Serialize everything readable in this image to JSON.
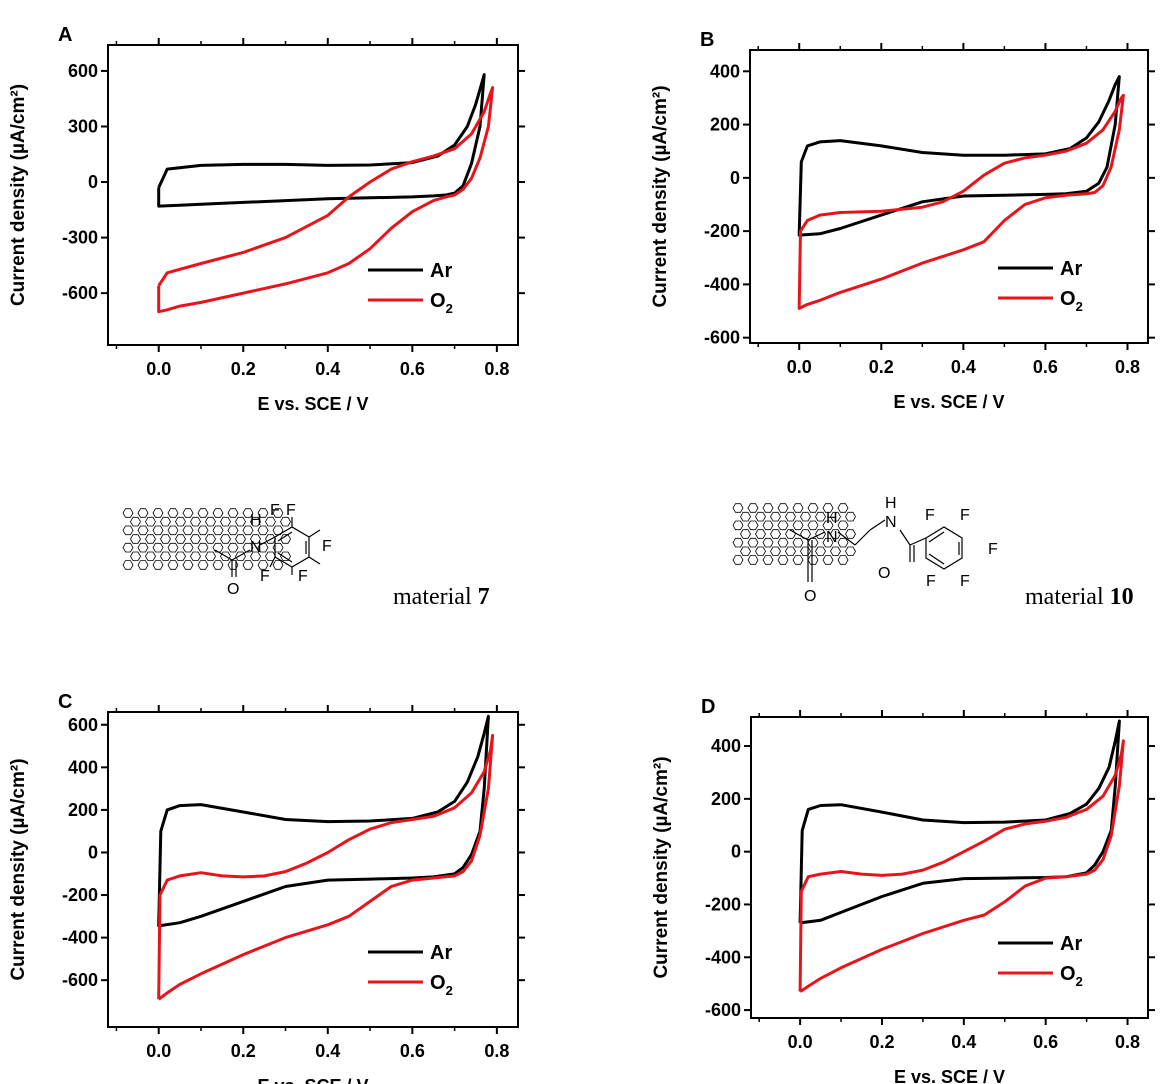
{
  "chart_data": [
    {
      "type": "line",
      "panel_label": "A",
      "xlabel": "E vs. SCE / V",
      "ylabel": "Current density (µA/cm²)",
      "xlim": [
        -0.12,
        0.85
      ],
      "ylim": [
        -880,
        740
      ],
      "xticks": [
        "0.0",
        "0.2",
        "0.4",
        "0.6",
        "0.8"
      ],
      "yticks": [
        "-600",
        "-300",
        "0",
        "300",
        "600"
      ],
      "legend_position": "bottom-right",
      "series": [
        {
          "name": "Ar",
          "color": "#000000",
          "x": [
            0.0,
            0.02,
            0.1,
            0.2,
            0.3,
            0.4,
            0.5,
            0.6,
            0.66,
            0.7,
            0.73,
            0.75,
            0.765,
            0.77,
            0.76,
            0.74,
            0.72,
            0.7,
            0.68,
            0.65,
            0.6,
            0.5,
            0.4,
            0.3,
            0.2,
            0.1,
            0.05,
            0.0,
            0.0,
            0.0
          ],
          "y": [
            -30,
            70,
            90,
            95,
            95,
            90,
            92,
            105,
            140,
            200,
            300,
            420,
            540,
            580,
            300,
            100,
            -20,
            -60,
            -70,
            -75,
            -80,
            -85,
            -90,
            -100,
            -110,
            -120,
            -125,
            -130,
            -100,
            -30
          ]
        },
        {
          "name": "O₂",
          "color": "#e8141c",
          "x": [
            0.0,
            0.02,
            0.1,
            0.2,
            0.3,
            0.4,
            0.45,
            0.5,
            0.55,
            0.6,
            0.65,
            0.7,
            0.74,
            0.77,
            0.785,
            0.79,
            0.78,
            0.76,
            0.74,
            0.72,
            0.7,
            0.68,
            0.65,
            0.6,
            0.55,
            0.5,
            0.45,
            0.4,
            0.3,
            0.2,
            0.1,
            0.05,
            0.02,
            0.0,
            0.0,
            0.0
          ],
          "y": [
            -560,
            -490,
            -440,
            -380,
            -300,
            -180,
            -80,
            0,
            70,
            110,
            140,
            180,
            260,
            380,
            480,
            510,
            300,
            130,
            20,
            -40,
            -70,
            -80,
            -100,
            -160,
            -250,
            -360,
            -440,
            -490,
            -550,
            -600,
            -650,
            -670,
            -690,
            -700,
            -600,
            -560
          ]
        }
      ],
      "legend": [
        {
          "label": "Ar"
        },
        {
          "label": "O",
          "sub": "2"
        }
      ]
    },
    {
      "type": "line",
      "panel_label": "B",
      "xlabel": "E vs. SCE / V",
      "ylabel": "Current density (µA/cm²)",
      "xlim": [
        -0.12,
        0.85
      ],
      "ylim": [
        -620,
        480
      ],
      "xticks": [
        "0.0",
        "0.2",
        "0.4",
        "0.6",
        "0.8"
      ],
      "yticks": [
        "-600",
        "-400",
        "-200",
        "0",
        "200",
        "400"
      ],
      "legend_position": "bottom-right",
      "series": [
        {
          "name": "Ar",
          "color": "#000000",
          "x": [
            0.0,
            0.005,
            0.02,
            0.05,
            0.1,
            0.2,
            0.3,
            0.4,
            0.5,
            0.6,
            0.66,
            0.7,
            0.73,
            0.755,
            0.77,
            0.78,
            0.77,
            0.75,
            0.73,
            0.7,
            0.65,
            0.6,
            0.5,
            0.4,
            0.3,
            0.2,
            0.1,
            0.05,
            0.0,
            0.0
          ],
          "y": [
            -210,
            60,
            120,
            135,
            140,
            120,
            95,
            85,
            85,
            90,
            110,
            150,
            210,
            290,
            350,
            380,
            200,
            40,
            -20,
            -50,
            -60,
            -62,
            -65,
            -68,
            -90,
            -140,
            -190,
            -210,
            -215,
            -210
          ]
        },
        {
          "name": "O₂",
          "color": "#e8141c",
          "x": [
            0.0,
            0.003,
            0.02,
            0.05,
            0.1,
            0.2,
            0.3,
            0.35,
            0.4,
            0.45,
            0.5,
            0.55,
            0.6,
            0.65,
            0.7,
            0.74,
            0.77,
            0.785,
            0.79,
            0.78,
            0.76,
            0.74,
            0.72,
            0.7,
            0.65,
            0.6,
            0.55,
            0.5,
            0.45,
            0.4,
            0.3,
            0.2,
            0.1,
            0.05,
            0.02,
            0.0,
            0.0
          ],
          "y": [
            -480,
            -200,
            -160,
            -140,
            -130,
            -125,
            -110,
            -90,
            -50,
            10,
            55,
            75,
            85,
            100,
            130,
            180,
            250,
            300,
            310,
            180,
            40,
            -30,
            -55,
            -60,
            -65,
            -75,
            -100,
            -160,
            -240,
            -270,
            -320,
            -380,
            -430,
            -460,
            -475,
            -490,
            -480
          ]
        }
      ],
      "legend": [
        {
          "label": "Ar"
        },
        {
          "label": "O",
          "sub": "2"
        }
      ]
    },
    {
      "type": "line",
      "panel_label": "C",
      "xlabel": "E vs. SCE / V",
      "ylabel": "Current density (µA/cm²)",
      "xlim": [
        -0.12,
        0.85
      ],
      "ylim": [
        -820,
        660
      ],
      "xticks": [
        "0.0",
        "0.2",
        "0.4",
        "0.6",
        "0.8"
      ],
      "yticks": [
        "-600",
        "-400",
        "-200",
        "0",
        "200",
        "400",
        "600"
      ],
      "legend_position": "bottom-right",
      "series": [
        {
          "name": "Ar",
          "color": "#000000",
          "x": [
            0.0,
            0.005,
            0.02,
            0.05,
            0.1,
            0.2,
            0.3,
            0.4,
            0.5,
            0.6,
            0.66,
            0.7,
            0.73,
            0.755,
            0.77,
            0.78,
            0.77,
            0.76,
            0.74,
            0.72,
            0.7,
            0.65,
            0.6,
            0.5,
            0.4,
            0.3,
            0.2,
            0.1,
            0.05,
            0.0,
            0.0
          ],
          "y": [
            -340,
            100,
            200,
            220,
            225,
            190,
            155,
            145,
            148,
            160,
            190,
            240,
            330,
            450,
            560,
            640,
            300,
            100,
            -10,
            -70,
            -100,
            -115,
            -120,
            -125,
            -130,
            -160,
            -230,
            -300,
            -330,
            -345,
            -340
          ]
        },
        {
          "name": "O₂",
          "color": "#e8141c",
          "x": [
            0.0,
            0.003,
            0.02,
            0.05,
            0.1,
            0.15,
            0.2,
            0.25,
            0.3,
            0.35,
            0.4,
            0.45,
            0.5,
            0.55,
            0.6,
            0.65,
            0.7,
            0.74,
            0.77,
            0.785,
            0.79,
            0.78,
            0.76,
            0.74,
            0.72,
            0.7,
            0.65,
            0.6,
            0.55,
            0.5,
            0.45,
            0.4,
            0.3,
            0.2,
            0.1,
            0.05,
            0.02,
            0.0,
            0.0
          ],
          "y": [
            -690,
            -200,
            -130,
            -110,
            -95,
            -110,
            -115,
            -110,
            -90,
            -50,
            0,
            60,
            110,
            140,
            155,
            170,
            210,
            280,
            380,
            480,
            550,
            300,
            80,
            -40,
            -90,
            -110,
            -120,
            -130,
            -160,
            -230,
            -300,
            -340,
            -400,
            -480,
            -570,
            -620,
            -660,
            -690,
            -690
          ]
        }
      ],
      "legend": [
        {
          "label": "Ar"
        },
        {
          "label": "O",
          "sub": "2"
        }
      ]
    },
    {
      "type": "line",
      "panel_label": "D",
      "xlabel": "E vs. SCE / V",
      "ylabel": "Current density (µA/cm²)",
      "xlim": [
        -0.12,
        0.85
      ],
      "ylim": [
        -630,
        510
      ],
      "xticks": [
        "0.0",
        "0.2",
        "0.4",
        "0.6",
        "0.8"
      ],
      "yticks": [
        "-600",
        "-400",
        "-200",
        "0",
        "200",
        "400"
      ],
      "legend_position": "bottom-right",
      "series": [
        {
          "name": "Ar",
          "color": "#000000",
          "x": [
            0.0,
            0.005,
            0.02,
            0.05,
            0.1,
            0.2,
            0.3,
            0.4,
            0.5,
            0.6,
            0.66,
            0.7,
            0.73,
            0.755,
            0.77,
            0.78,
            0.77,
            0.76,
            0.74,
            0.72,
            0.7,
            0.65,
            0.6,
            0.5,
            0.4,
            0.3,
            0.2,
            0.1,
            0.05,
            0.0,
            0.0
          ],
          "y": [
            -270,
            80,
            160,
            175,
            178,
            150,
            120,
            110,
            112,
            120,
            145,
            180,
            240,
            320,
            420,
            495,
            250,
            80,
            0,
            -50,
            -80,
            -95,
            -98,
            -100,
            -102,
            -120,
            -170,
            -230,
            -260,
            -270,
            -270
          ]
        },
        {
          "name": "O₂",
          "color": "#e8141c",
          "x": [
            0.0,
            0.003,
            0.02,
            0.05,
            0.1,
            0.15,
            0.2,
            0.25,
            0.3,
            0.35,
            0.4,
            0.45,
            0.5,
            0.55,
            0.6,
            0.65,
            0.7,
            0.74,
            0.77,
            0.785,
            0.79,
            0.78,
            0.76,
            0.74,
            0.72,
            0.7,
            0.65,
            0.6,
            0.55,
            0.5,
            0.45,
            0.4,
            0.3,
            0.2,
            0.1,
            0.05,
            0.02,
            0.0,
            0.0
          ],
          "y": [
            -530,
            -150,
            -95,
            -85,
            -75,
            -85,
            -90,
            -85,
            -70,
            -40,
            0,
            40,
            85,
            105,
            115,
            130,
            160,
            210,
            290,
            370,
            420,
            250,
            60,
            -30,
            -70,
            -85,
            -95,
            -100,
            -130,
            -190,
            -240,
            -260,
            -310,
            -370,
            -440,
            -480,
            -510,
            -530,
            -530
          ]
        }
      ],
      "legend": [
        {
          "label": "Ar"
        },
        {
          "label": "O",
          "sub": "2"
        }
      ]
    }
  ],
  "molecules": [
    {
      "atom_labels": [
        "H",
        "N",
        "F",
        "F",
        "F",
        "F",
        "F",
        "O"
      ],
      "caption_text": "material ",
      "caption_number": "7"
    },
    {
      "atom_labels": [
        "H",
        "N",
        "H",
        "N",
        "F",
        "F",
        "F",
        "F",
        "F",
        "O",
        "O"
      ],
      "caption_text": "material ",
      "caption_number": "10"
    }
  ]
}
